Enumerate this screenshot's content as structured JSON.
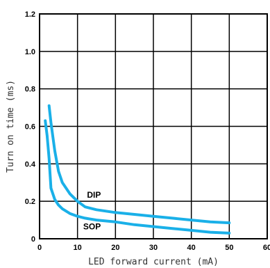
{
  "chart_data": {
    "type": "line",
    "title": "",
    "xlabel": "LED forward current (mA)",
    "ylabel": "Turn on time (ms)",
    "xlim": [
      0,
      60
    ],
    "ylim": [
      0,
      1.2
    ],
    "xticks": [
      0,
      10,
      20,
      30,
      40,
      50,
      60
    ],
    "yticks": [
      0,
      0.2,
      0.4,
      0.6,
      0.8,
      1.0,
      1.2
    ],
    "xtick_labels": [
      "0",
      "10",
      "20",
      "30",
      "40",
      "50",
      "60"
    ],
    "ytick_labels": [
      "0",
      "0.2",
      "0.4",
      "0.6",
      "0.8",
      "1.0",
      "1.2"
    ],
    "grid": true,
    "line_color": "#1ab0e8",
    "series": [
      {
        "name": "DIP",
        "x": [
          2.5,
          3,
          4,
          5,
          6,
          8,
          10,
          12,
          15,
          20,
          25,
          30,
          35,
          40,
          45,
          50
        ],
        "y": [
          0.71,
          0.62,
          0.47,
          0.36,
          0.3,
          0.24,
          0.2,
          0.17,
          0.155,
          0.14,
          0.13,
          0.12,
          0.11,
          0.1,
          0.09,
          0.085
        ]
      },
      {
        "name": "SOP",
        "x": [
          1.5,
          2,
          2.5,
          3,
          4,
          5,
          6,
          8,
          10,
          12,
          15,
          20,
          25,
          30,
          35,
          40,
          45,
          50
        ],
        "y": [
          0.63,
          0.55,
          0.43,
          0.27,
          0.21,
          0.18,
          0.16,
          0.135,
          0.12,
          0.11,
          0.1,
          0.09,
          0.075,
          0.065,
          0.055,
          0.045,
          0.035,
          0.03
        ]
      }
    ],
    "annotations": [
      {
        "text": "DIP",
        "x": 12.5,
        "y": 0.22
      },
      {
        "text": "SOP",
        "x": 11.5,
        "y": 0.05
      }
    ]
  }
}
